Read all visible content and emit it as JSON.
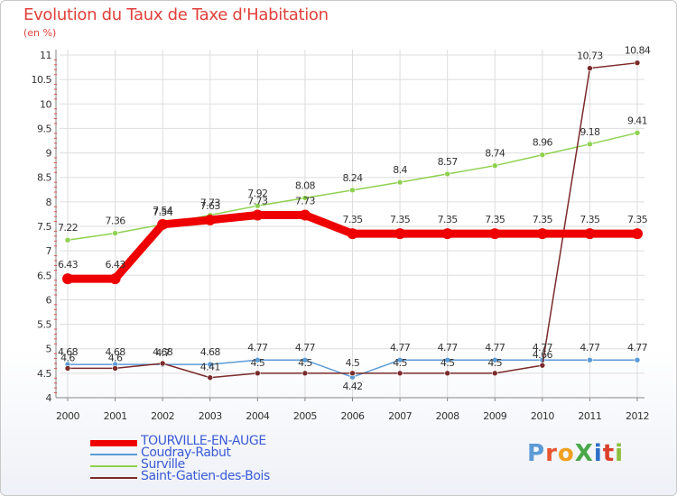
{
  "header": {
    "title": "Evolution du Taux de Taxe d'Habitation",
    "unit": "(en %)"
  },
  "logo": {
    "text": "ProXiti",
    "colors": [
      "#5c9bd6",
      "#e8552e",
      "#f0a020",
      "#4aa84a",
      "#2e6fc7",
      "#d9402a",
      "#8bbf3a"
    ]
  },
  "chart_data": {
    "type": "line",
    "title": "Evolution du Taux de Taxe d'Habitation",
    "ylabel": "(en %)",
    "xlabel": "",
    "x": [
      "2000",
      "2001",
      "2002",
      "2003",
      "2004",
      "2005",
      "2006",
      "2007",
      "2008",
      "2009",
      "2010",
      "2011",
      "2012"
    ],
    "ylim": [
      4,
      11
    ],
    "yticks": [
      "4",
      "4.5",
      "5",
      "5.5",
      "6",
      "6.5",
      "7",
      "7.5",
      "8",
      "8.5",
      "9",
      "9.5",
      "10",
      "10.5",
      "11"
    ],
    "grid": true,
    "legend_position": "bottom-left",
    "series": [
      {
        "name": "TOURVILLE-EN-AUGE",
        "color": "#ee0000",
        "values": [
          6.43,
          6.43,
          7.54,
          7.63,
          7.73,
          7.73,
          7.35,
          7.35,
          7.35,
          7.35,
          7.35,
          7.35,
          7.35
        ],
        "labels": [
          "6.43",
          "6.43",
          "7.54",
          "7.63",
          "7.73",
          "7.73",
          "7.35",
          "7.35",
          "7.35",
          "7.35",
          "7.35",
          "7.35",
          "7.35"
        ]
      },
      {
        "name": "Coudray-Rabut",
        "color": "#5b9bd5",
        "values": [
          4.68,
          4.68,
          4.68,
          4.68,
          4.77,
          4.77,
          4.42,
          4.77,
          4.77,
          4.77,
          4.77,
          4.77,
          4.77
        ],
        "labels": [
          "4.68",
          "4.68",
          "4.68",
          "4.68",
          "4.77",
          "4.77",
          "4.42",
          "4.77",
          "4.77",
          "4.77",
          "4.77",
          "4.77",
          "4.77"
        ]
      },
      {
        "name": "Surville",
        "color": "#8fd14f",
        "values": [
          7.22,
          7.36,
          7.54,
          7.73,
          7.92,
          8.08,
          8.24,
          8.4,
          8.57,
          8.74,
          8.96,
          9.18,
          9.41
        ],
        "labels": [
          "7.22",
          "7.36",
          "7.54",
          "7.73",
          "7.92",
          "8.08",
          "8.24",
          "8.4",
          "8.57",
          "8.74",
          "8.96",
          "9.18",
          "9.41"
        ]
      },
      {
        "name": "Saint-Gatien-des-Bois",
        "color": "#7b2a2a",
        "values": [
          4.6,
          4.6,
          4.7,
          4.41,
          4.5,
          4.5,
          4.5,
          4.5,
          4.5,
          4.5,
          4.66,
          10.73,
          10.84
        ],
        "labels": [
          "4.6",
          "4.6",
          "4.7",
          "4.41",
          "4.5",
          "4.5",
          "4.5",
          "4.5",
          "4.5",
          "4.5",
          "4.66",
          "10.73",
          "10.84"
        ]
      }
    ]
  }
}
